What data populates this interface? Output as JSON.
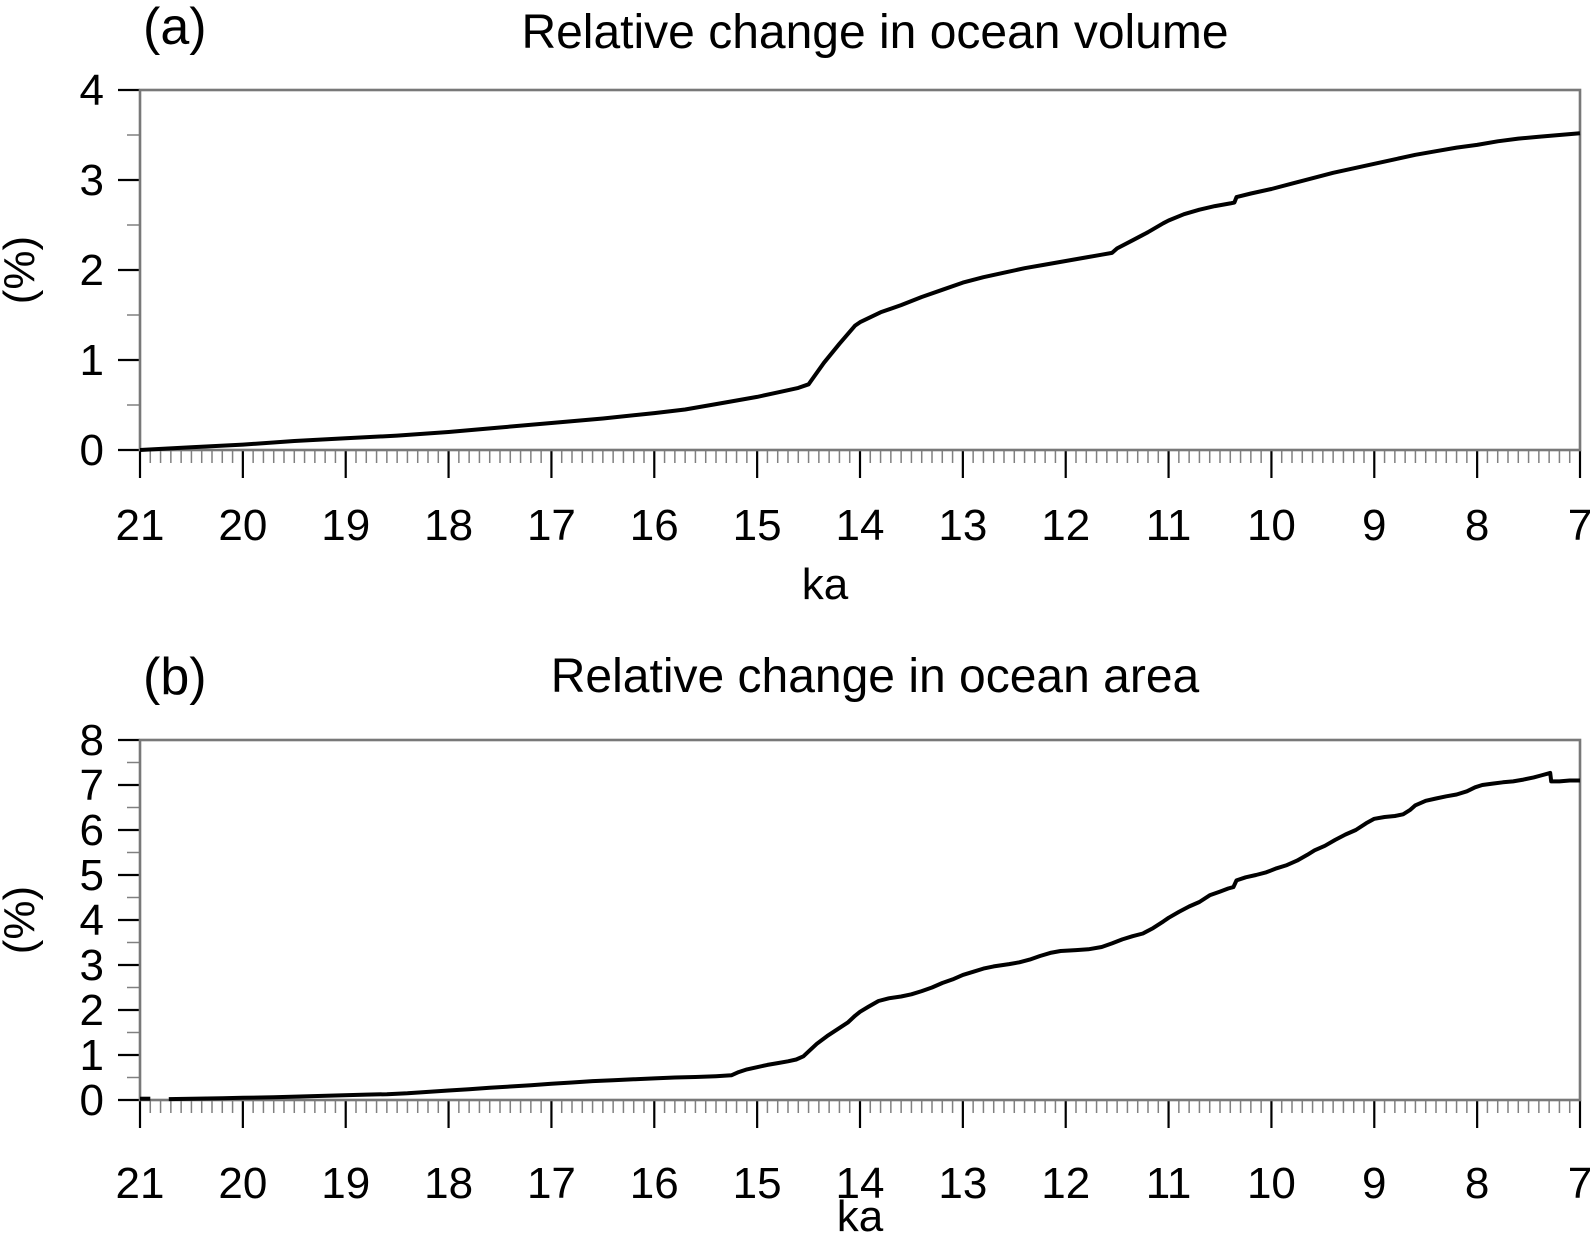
{
  "figure": {
    "background": "#ffffff",
    "curve_color": "#000000",
    "axis_box_color": "#787878",
    "major_tick_color": "#000000",
    "minor_tick_color": "#808080"
  },
  "chart_data": [
    {
      "id": "a",
      "type": "line",
      "panel_label": "(a)",
      "title": "Relative change in ocean volume",
      "xlabel": "ka",
      "ylabel": "(%)",
      "xlim": [
        21,
        7
      ],
      "ylim": [
        0,
        4
      ],
      "xticks": [
        21,
        20,
        19,
        18,
        17,
        16,
        15,
        14,
        13,
        12,
        11,
        10,
        9,
        8,
        7
      ],
      "yticks": [
        0,
        1,
        2,
        3,
        4
      ],
      "x_minor_step": 0.1,
      "y_minor_step": 0.5,
      "grid": false,
      "legend": "none",
      "series": [
        {
          "name": "relative ocean volume change (%)",
          "points": [
            [
              21,
              0.0
            ],
            [
              20.5,
              0.03
            ],
            [
              20,
              0.06
            ],
            [
              19.5,
              0.1
            ],
            [
              19,
              0.13
            ],
            [
              18.5,
              0.16
            ],
            [
              18,
              0.2
            ],
            [
              17.5,
              0.25
            ],
            [
              17,
              0.3
            ],
            [
              16.5,
              0.35
            ],
            [
              16,
              0.41
            ],
            [
              15.7,
              0.45
            ],
            [
              15.4,
              0.51
            ],
            [
              15.2,
              0.55
            ],
            [
              15,
              0.59
            ],
            [
              14.8,
              0.64
            ],
            [
              14.6,
              0.69
            ],
            [
              14.5,
              0.73
            ],
            [
              14.35,
              0.97
            ],
            [
              14.2,
              1.18
            ],
            [
              14.05,
              1.38
            ],
            [
              14,
              1.42
            ],
            [
              13.8,
              1.53
            ],
            [
              13.6,
              1.61
            ],
            [
              13.4,
              1.7
            ],
            [
              13.2,
              1.78
            ],
            [
              13,
              1.86
            ],
            [
              12.8,
              1.92
            ],
            [
              12.6,
              1.97
            ],
            [
              12.4,
              2.02
            ],
            [
              12.2,
              2.06
            ],
            [
              12,
              2.1
            ],
            [
              11.8,
              2.14
            ],
            [
              11.65,
              2.17
            ],
            [
              11.55,
              2.19
            ],
            [
              11.5,
              2.24
            ],
            [
              11.35,
              2.33
            ],
            [
              11.2,
              2.42
            ],
            [
              11.05,
              2.52
            ],
            [
              11,
              2.55
            ],
            [
              10.85,
              2.62
            ],
            [
              10.7,
              2.67
            ],
            [
              10.55,
              2.71
            ],
            [
              10.4,
              2.74
            ],
            [
              10.36,
              2.75
            ],
            [
              10.34,
              2.81
            ],
            [
              10.2,
              2.85
            ],
            [
              10,
              2.9
            ],
            [
              9.8,
              2.96
            ],
            [
              9.6,
              3.02
            ],
            [
              9.4,
              3.08
            ],
            [
              9.2,
              3.13
            ],
            [
              9,
              3.18
            ],
            [
              8.8,
              3.23
            ],
            [
              8.6,
              3.28
            ],
            [
              8.4,
              3.32
            ],
            [
              8.2,
              3.36
            ],
            [
              8,
              3.39
            ],
            [
              7.8,
              3.43
            ],
            [
              7.6,
              3.46
            ],
            [
              7.4,
              3.48
            ],
            [
              7.2,
              3.5
            ],
            [
              7,
              3.52
            ]
          ]
        }
      ]
    },
    {
      "id": "b",
      "type": "line",
      "panel_label": "(b)",
      "title": "Relative change in ocean area",
      "xlabel": "ka",
      "ylabel": "(%)",
      "xlim": [
        21,
        7
      ],
      "ylim": [
        0,
        8
      ],
      "xticks": [
        21,
        20,
        19,
        18,
        17,
        16,
        15,
        14,
        13,
        12,
        11,
        10,
        9,
        8,
        7
      ],
      "yticks": [
        0,
        1,
        2,
        3,
        4,
        5,
        6,
        7,
        8
      ],
      "x_minor_step": 0.1,
      "y_minor_step": 0.5,
      "grid": false,
      "legend": "none",
      "series": [
        {
          "name": "initial segment",
          "points": [
            [
              21.0,
              0.03
            ],
            [
              20.9,
              0.03
            ]
          ]
        },
        {
          "name": "relative ocean area change (%)",
          "points": [
            [
              20.72,
              0.02
            ],
            [
              20.5,
              0.03
            ],
            [
              20.2,
              0.04
            ],
            [
              20,
              0.05
            ],
            [
              19.7,
              0.06
            ],
            [
              19.4,
              0.08
            ],
            [
              19.1,
              0.1
            ],
            [
              18.8,
              0.12
            ],
            [
              18.6,
              0.13
            ],
            [
              18.4,
              0.15
            ],
            [
              18.2,
              0.18
            ],
            [
              18,
              0.21
            ],
            [
              17.8,
              0.24
            ],
            [
              17.6,
              0.27
            ],
            [
              17.4,
              0.3
            ],
            [
              17.2,
              0.33
            ],
            [
              17,
              0.36
            ],
            [
              16.8,
              0.39
            ],
            [
              16.6,
              0.42
            ],
            [
              16.4,
              0.44
            ],
            [
              16.2,
              0.46
            ],
            [
              16,
              0.48
            ],
            [
              15.8,
              0.5
            ],
            [
              15.6,
              0.51
            ],
            [
              15.4,
              0.53
            ],
            [
              15.25,
              0.55
            ],
            [
              15.18,
              0.62
            ],
            [
              15.1,
              0.68
            ],
            [
              15,
              0.73
            ],
            [
              14.9,
              0.78
            ],
            [
              14.8,
              0.82
            ],
            [
              14.7,
              0.86
            ],
            [
              14.62,
              0.9
            ],
            [
              14.55,
              0.97
            ],
            [
              14.5,
              1.08
            ],
            [
              14.42,
              1.25
            ],
            [
              14.32,
              1.42
            ],
            [
              14.22,
              1.57
            ],
            [
              14.12,
              1.72
            ],
            [
              14.05,
              1.87
            ],
            [
              14,
              1.96
            ],
            [
              13.92,
              2.07
            ],
            [
              13.82,
              2.2
            ],
            [
              13.72,
              2.26
            ],
            [
              13.6,
              2.3
            ],
            [
              13.5,
              2.35
            ],
            [
              13.4,
              2.42
            ],
            [
              13.3,
              2.5
            ],
            [
              13.2,
              2.6
            ],
            [
              13.1,
              2.68
            ],
            [
              13,
              2.78
            ],
            [
              12.9,
              2.85
            ],
            [
              12.8,
              2.92
            ],
            [
              12.7,
              2.97
            ],
            [
              12.55,
              3.02
            ],
            [
              12.45,
              3.06
            ],
            [
              12.35,
              3.12
            ],
            [
              12.25,
              3.2
            ],
            [
              12.15,
              3.27
            ],
            [
              12.05,
              3.31
            ],
            [
              11.9,
              3.33
            ],
            [
              11.78,
              3.35
            ],
            [
              11.65,
              3.4
            ],
            [
              11.55,
              3.48
            ],
            [
              11.45,
              3.57
            ],
            [
              11.35,
              3.64
            ],
            [
              11.25,
              3.7
            ],
            [
              11.15,
              3.82
            ],
            [
              11.05,
              3.97
            ],
            [
              11,
              4.05
            ],
            [
              10.9,
              4.18
            ],
            [
              10.8,
              4.3
            ],
            [
              10.7,
              4.4
            ],
            [
              10.6,
              4.55
            ],
            [
              10.5,
              4.63
            ],
            [
              10.42,
              4.7
            ],
            [
              10.37,
              4.73
            ],
            [
              10.34,
              4.88
            ],
            [
              10.25,
              4.95
            ],
            [
              10.15,
              5.0
            ],
            [
              10.05,
              5.06
            ],
            [
              9.95,
              5.15
            ],
            [
              9.85,
              5.22
            ],
            [
              9.75,
              5.32
            ],
            [
              9.65,
              5.45
            ],
            [
              9.58,
              5.55
            ],
            [
              9.48,
              5.65
            ],
            [
              9.38,
              5.78
            ],
            [
              9.28,
              5.9
            ],
            [
              9.18,
              6.0
            ],
            [
              9.08,
              6.15
            ],
            [
              9,
              6.25
            ],
            [
              8.9,
              6.29
            ],
            [
              8.8,
              6.31
            ],
            [
              8.72,
              6.35
            ],
            [
              8.65,
              6.45
            ],
            [
              8.6,
              6.55
            ],
            [
              8.5,
              6.65
            ],
            [
              8.4,
              6.7
            ],
            [
              8.3,
              6.75
            ],
            [
              8.2,
              6.79
            ],
            [
              8.1,
              6.86
            ],
            [
              8.02,
              6.95
            ],
            [
              7.95,
              7.0
            ],
            [
              7.85,
              7.03
            ],
            [
              7.75,
              7.06
            ],
            [
              7.65,
              7.08
            ],
            [
              7.55,
              7.12
            ],
            [
              7.45,
              7.17
            ],
            [
              7.38,
              7.21
            ],
            [
              7.32,
              7.25
            ],
            [
              7.29,
              7.27
            ],
            [
              7.28,
              7.08
            ],
            [
              7.2,
              7.08
            ],
            [
              7.1,
              7.1
            ],
            [
              7,
              7.1
            ]
          ]
        }
      ]
    }
  ]
}
